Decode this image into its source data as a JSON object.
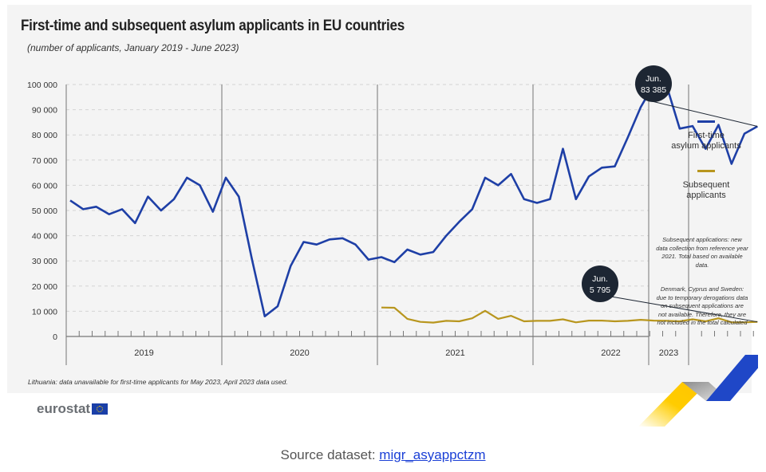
{
  "header": {
    "title": "First-time and subsequent asylum applicants in EU countries",
    "subtitle": "(number of applicants, January 2019 - June 2023)"
  },
  "footnote": "Lithuania: data unavailable for first-time applicants for May 2023, April 2023 data used.",
  "legend": [
    {
      "label_line1": "First-time",
      "label_line2": "asylum applicants",
      "color": "#1e3fa6"
    },
    {
      "label_line1": "Subsequent",
      "label_line2": "applicants",
      "color": "#b8961e"
    }
  ],
  "notes": {
    "note1": "Subsequent applications: new data collection from reference year 2021. Total based on available data.",
    "note2": "Denmark, Cyprus and Sweden: due to temporary derogations data on subsequent applications are not available. Therefore, they are not included in the total calculated"
  },
  "branding": {
    "logo_text": "eurostat"
  },
  "source": {
    "label": "Source dataset:",
    "link_text": "migr_asyappctzm"
  },
  "colors": {
    "first_time": "#1e3fa6",
    "subsequent": "#b8961e",
    "callout": "#1d2633"
  },
  "chart_data": {
    "type": "line",
    "title": "First-time and subsequent asylum applicants in EU countries",
    "subtitle": "(number of applicants, January 2019 - June 2023)",
    "xlabel": "",
    "ylabel": "",
    "ylim": [
      0,
      100000
    ],
    "yticks": [
      0,
      10000,
      20000,
      30000,
      40000,
      50000,
      60000,
      70000,
      80000,
      90000,
      100000
    ],
    "ytick_labels": [
      "0",
      "10 000",
      "20 000",
      "30 000",
      "40 000",
      "50 000",
      "60 000",
      "70 000",
      "80 000",
      "90 000",
      "100 000"
    ],
    "year_labels": [
      "2019",
      "2020",
      "2021",
      "2022",
      "2023"
    ],
    "grid": true,
    "legend_position": "right",
    "start": "2019-01",
    "months": 54,
    "series": [
      {
        "name": "First-time asylum applicants",
        "start_index": 0,
        "values": [
          54000,
          50500,
          51500,
          48500,
          50500,
          45000,
          55500,
          50000,
          54500,
          63000,
          60000,
          49500,
          63000,
          55500,
          31000,
          8000,
          12000,
          28000,
          37500,
          36500,
          38500,
          39000,
          36500,
          30500,
          31500,
          29500,
          34500,
          32500,
          33500,
          40000,
          45500,
          50500,
          63000,
          60000,
          64500,
          54500,
          53000,
          54500,
          74500,
          54500,
          63500,
          67000,
          67500,
          79000,
          91000,
          100000,
          99500,
          82500,
          83500,
          74500,
          84000,
          68500,
          80500,
          83385
        ]
      },
      {
        "name": "Subsequent applicants",
        "start_index": 24,
        "values": [
          11500,
          11400,
          7000,
          5800,
          5500,
          6200,
          6000,
          7200,
          10200,
          7000,
          8200,
          6000,
          6200,
          6200,
          6800,
          5600,
          6300,
          6300,
          6000,
          6200,
          6600,
          6300,
          6200,
          6000,
          6800,
          6000,
          7200,
          5600,
          5600,
          5795
        ]
      }
    ],
    "annotations": [
      {
        "series": "First-time asylum applicants",
        "label_line1": "Jun.",
        "label_line2": "83 385"
      },
      {
        "series": "Subsequent applicants",
        "label_line1": "Jun.",
        "label_line2": "5 795"
      }
    ]
  }
}
